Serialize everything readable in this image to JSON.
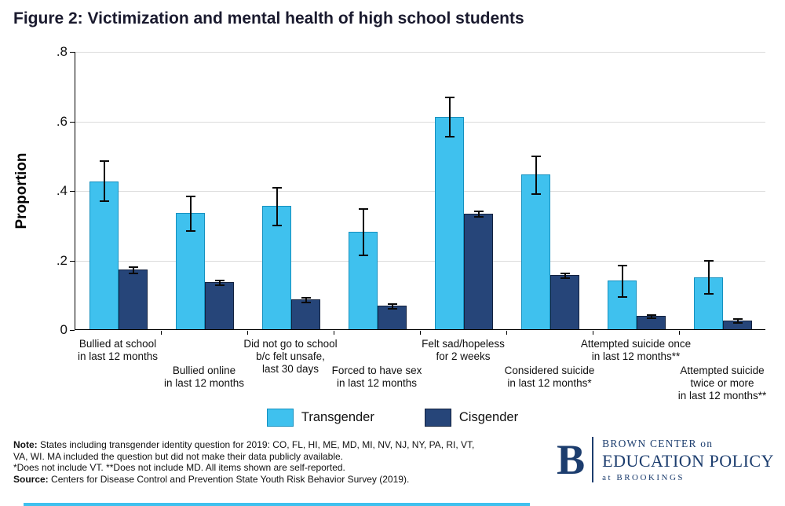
{
  "chart_data": {
    "type": "bar",
    "title": "Figure 2: Victimization and mental health of high school students",
    "xlabel": "",
    "ylabel": "Proportion",
    "ylim": [
      0,
      0.8
    ],
    "yticks": [
      0,
      0.2,
      0.4,
      0.6,
      0.8
    ],
    "ytick_labels": [
      "0",
      ".2",
      ".4",
      ".6",
      ".8"
    ],
    "grid": "horizontal",
    "legend_position": "bottom",
    "error_bars": true,
    "categories": [
      "Bullied at school\nin last 12 months",
      "Bullied online\nin last 12 months",
      "Did not go to school\nb/c felt unsafe,\nlast 30 days",
      "Forced to have sex\nin last 12 months",
      "Felt sad/hopeless\nfor 2 weeks",
      "Considered suicide\nin last 12 months*",
      "Attempted suicide once\nin last 12 months**",
      "Attempted suicide\ntwice or more\nin last 12 months**"
    ],
    "label_rows": [
      0,
      1,
      0,
      1,
      0,
      1,
      0,
      1
    ],
    "series": [
      {
        "name": "Transgender",
        "color": "#3FC1EE",
        "border": "#1590bf",
        "values": [
          0.425,
          0.335,
          0.355,
          0.28,
          0.61,
          0.445,
          0.14,
          0.15
        ],
        "ci_low": [
          0.37,
          0.285,
          0.3,
          0.215,
          0.555,
          0.39,
          0.095,
          0.105
        ],
        "ci_high": [
          0.485,
          0.385,
          0.41,
          0.348,
          0.67,
          0.5,
          0.185,
          0.198
        ]
      },
      {
        "name": "Cisgender",
        "color": "#264579",
        "border": "#13223f",
        "values": [
          0.172,
          0.136,
          0.086,
          0.068,
          0.333,
          0.156,
          0.039,
          0.026
        ],
        "ci_low": [
          0.163,
          0.129,
          0.079,
          0.062,
          0.325,
          0.149,
          0.034,
          0.021
        ],
        "ci_high": [
          0.181,
          0.143,
          0.093,
          0.074,
          0.341,
          0.163,
          0.044,
          0.031
        ]
      }
    ]
  },
  "notes": {
    "note_label": "Note:",
    "note_text": "States including transgender identity question for 2019: CO, FL, HI, ME, MD, MI, NV, NJ, NY, PA, RI, VT, VA, WI. MA included the question but did not make their data publicly available.",
    "asterisk_text": "*Does not include VT. **Does not include MD. All items shown are self-reported.",
    "source_label": "Source:",
    "source_text": "Centers for Disease Control and Prevention State Youth Risk Behavior Survey (2019)."
  },
  "logo": {
    "letter": "B",
    "line1": "BROWN CENTER on",
    "line2": "EDUCATION POLICY",
    "line3": "at BROOKINGS",
    "color": "#1C3D6E"
  },
  "footer_strip_color": "#3FC1EE"
}
